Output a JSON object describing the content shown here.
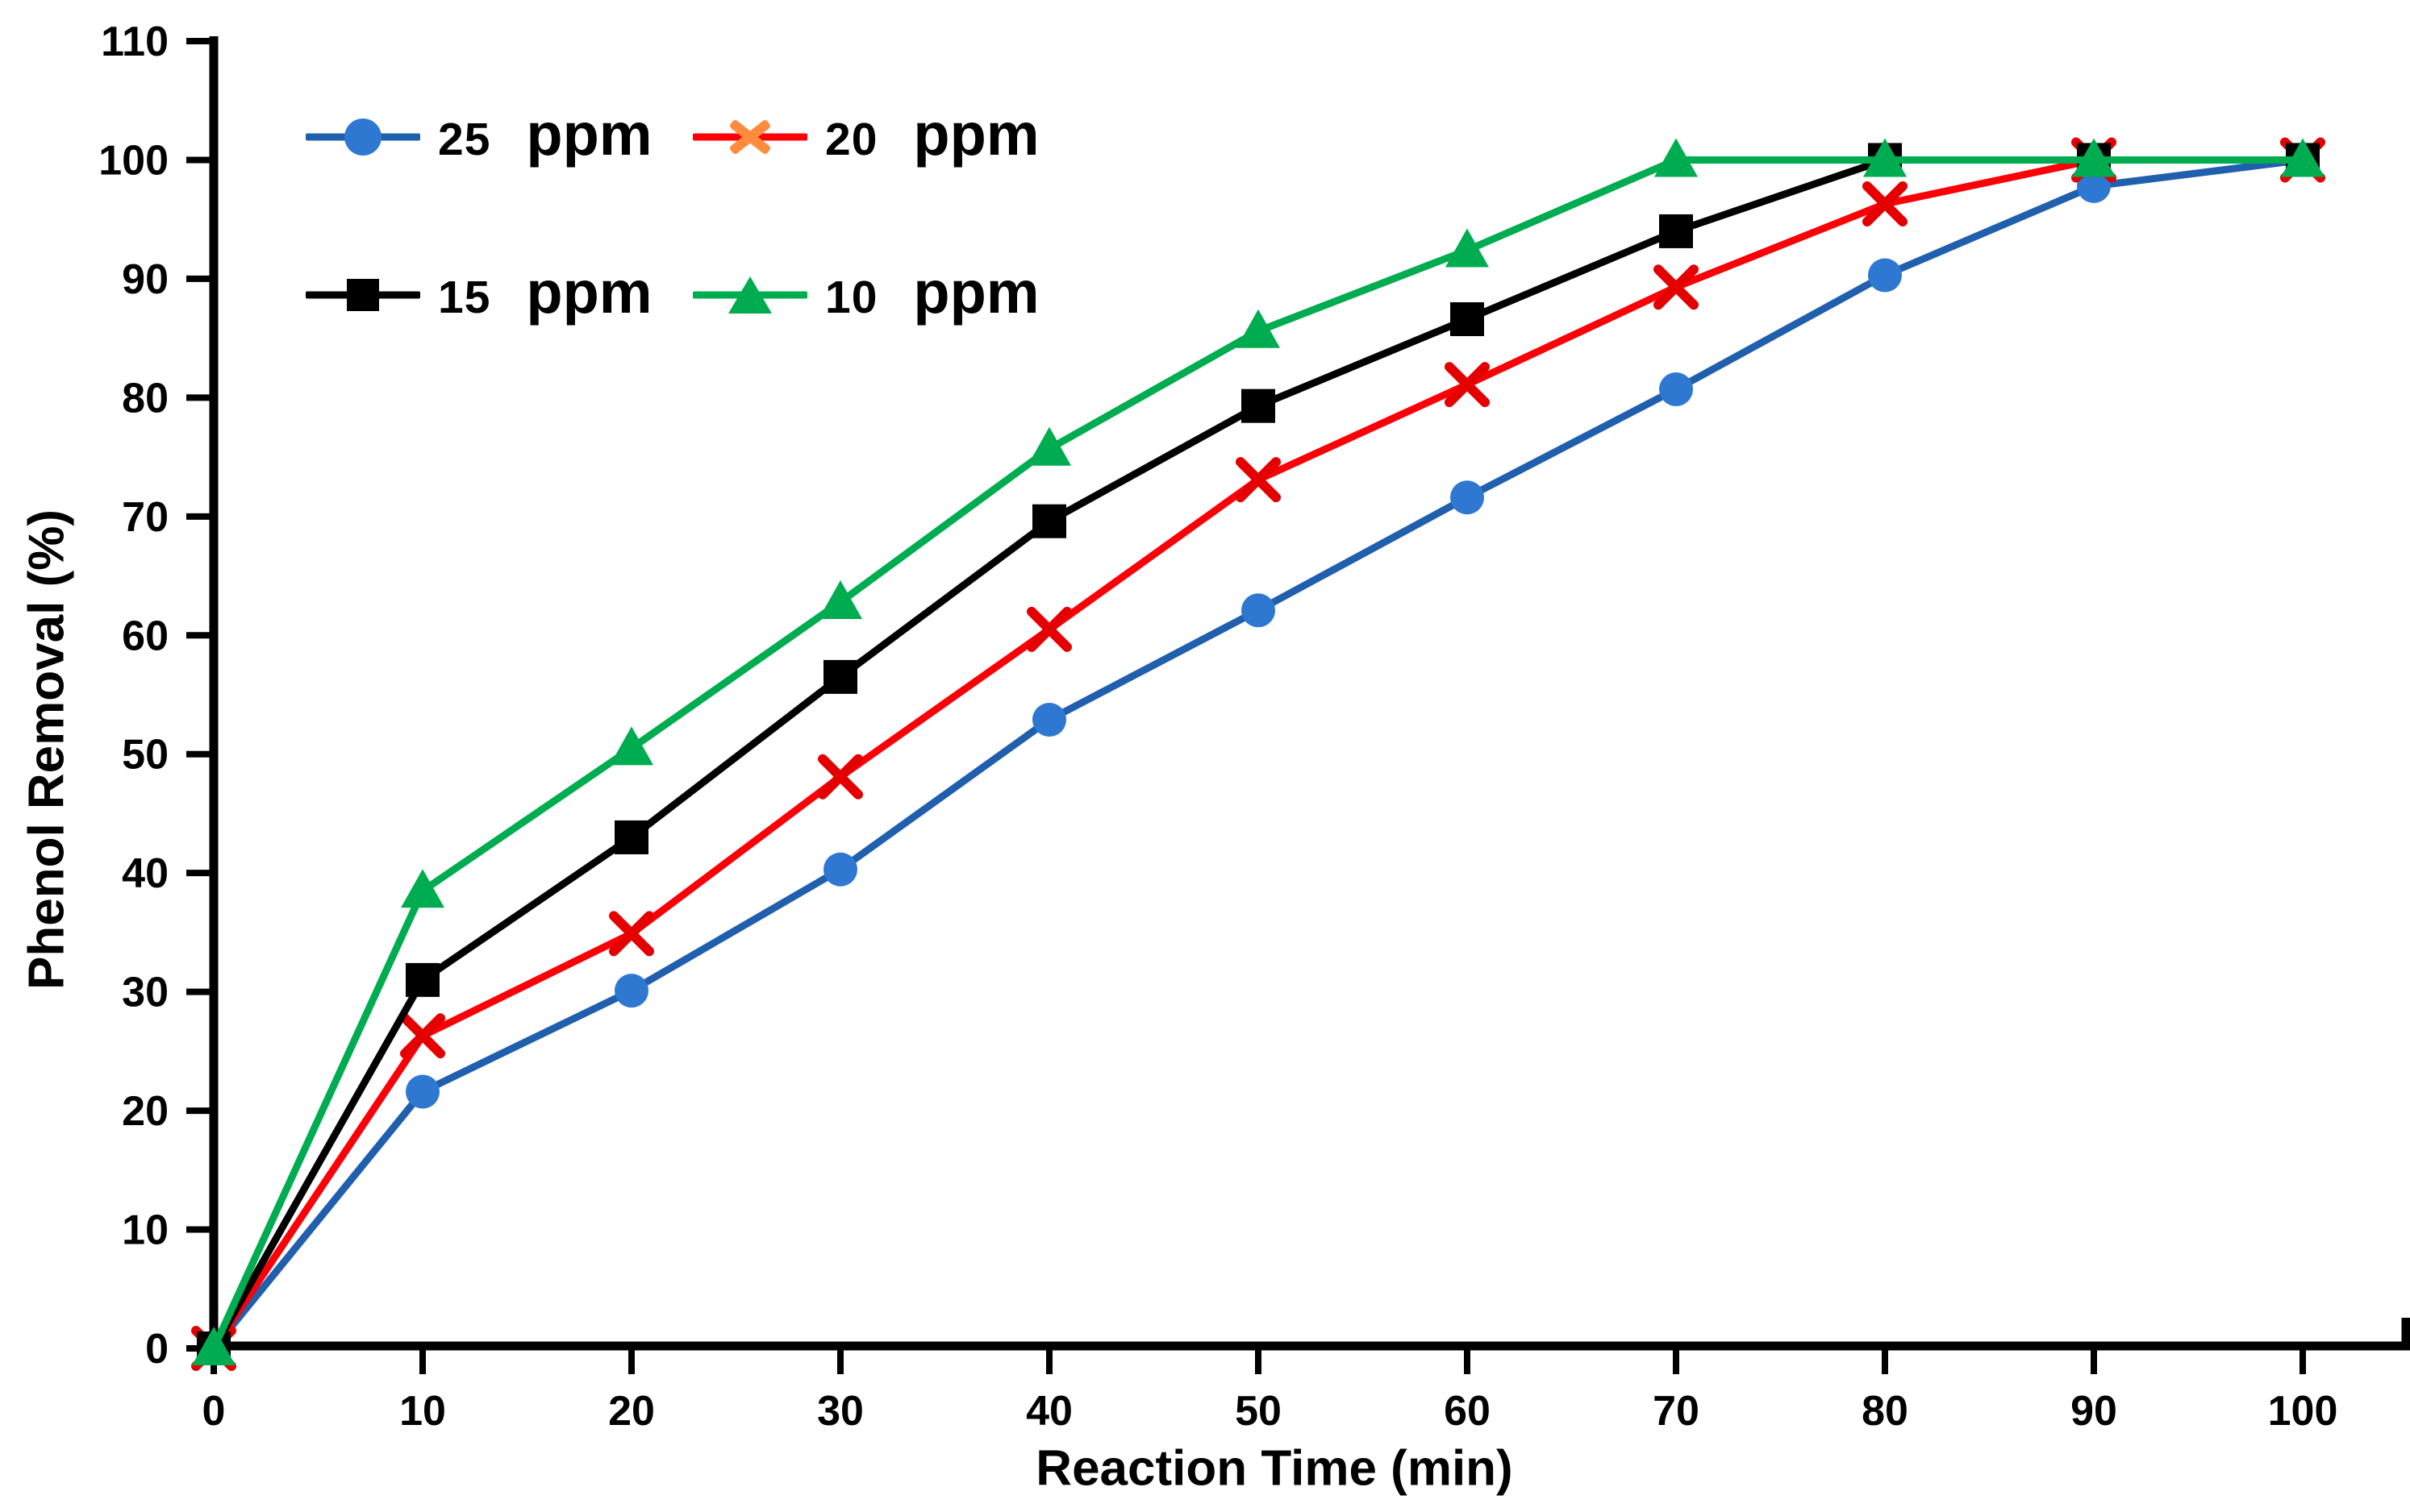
{
  "chart_data": {
    "type": "line",
    "title": "",
    "xlabel": "Reaction Time (min)",
    "ylabel": "Phenol Removal (%)",
    "x": [
      0,
      10,
      20,
      30,
      40,
      50,
      60,
      70,
      80,
      90,
      100
    ],
    "x_ticks": [
      0,
      10,
      20,
      30,
      40,
      50,
      60,
      70,
      80,
      90,
      100
    ],
    "y_ticks": [
      0,
      10,
      20,
      30,
      40,
      50,
      60,
      70,
      80,
      90,
      100,
      110
    ],
    "xlim": [
      0,
      105
    ],
    "ylim": [
      0,
      110
    ],
    "grid": false,
    "legend_position": "top-left-inside",
    "series": [
      {
        "name": "25 ppm",
        "marker": "circle",
        "line_color": "#1f5fad",
        "marker_color": "#2e78d2",
        "values": [
          0,
          21.6,
          30.1,
          40.3,
          52.9,
          62.1,
          71.6,
          80.7,
          90.3,
          97.8,
          100
        ]
      },
      {
        "name": "20 ppm",
        "marker": "x",
        "line_color": "#fb0007",
        "marker_color": "#e40000",
        "legend_marker_color": "#ff8b3d",
        "values": [
          0,
          26.3,
          34.9,
          48.1,
          60.5,
          73.1,
          81.1,
          89.3,
          96.3,
          100,
          100
        ]
      },
      {
        "name": "15 ppm",
        "marker": "square",
        "line_color": "#000000",
        "marker_color": "#000000",
        "values": [
          0,
          31,
          43,
          56.5,
          69.6,
          79.3,
          86.6,
          94,
          100,
          100,
          100
        ]
      },
      {
        "name": "10 ppm",
        "marker": "triangle",
        "line_color": "#00ac50",
        "marker_color": "#00ac50",
        "values": [
          0,
          38.5,
          50.5,
          62.8,
          75.7,
          85.6,
          92.4,
          100,
          100,
          100,
          100
        ]
      }
    ],
    "axis_color": "#000000",
    "tick_label_color": "#000000"
  },
  "legend": {
    "items": [
      {
        "number": "25",
        "unit": "ppm"
      },
      {
        "number": "20",
        "unit": "ppm"
      },
      {
        "number": "15",
        "unit": "ppm"
      },
      {
        "number": "10",
        "unit": "ppm"
      }
    ]
  }
}
